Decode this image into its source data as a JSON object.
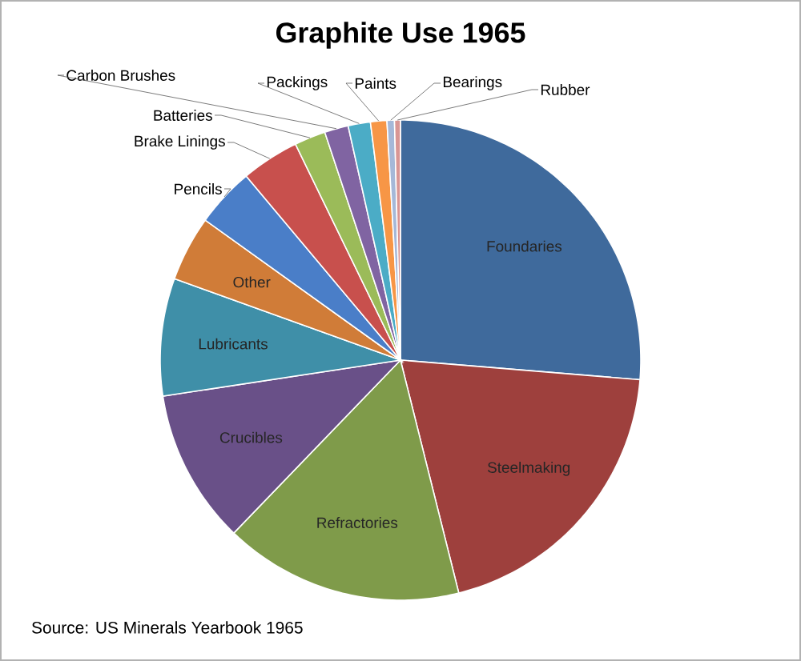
{
  "chart_data": {
    "type": "pie",
    "title": "Graphite Use 1965",
    "categories": [
      "Foundaries",
      "Steelmaking",
      "Refractories",
      "Crucibles",
      "Lubricants",
      "Other",
      "Pencils",
      "Brake Linings",
      "Batteries",
      "Carbon Brushes",
      "Packings",
      "Paints",
      "Bearings",
      "Rubber"
    ],
    "values": [
      26.3,
      19.8,
      16.1,
      10.4,
      7.9,
      4.4,
      4.0,
      3.9,
      2.1,
      1.6,
      1.5,
      1.1,
      0.5,
      0.4
    ],
    "colors": [
      "#3f6a9c",
      "#9e403d",
      "#7f9b4a",
      "#695088",
      "#3f8fa8",
      "#d07c38",
      "#4a7ec8",
      "#c8504d",
      "#9bbb59",
      "#8064a2",
      "#4bacc6",
      "#f79646",
      "#a5b8d8",
      "#d99694"
    ],
    "annotations": [
      "Source: US Minerals Yearbook 1965"
    ]
  }
}
